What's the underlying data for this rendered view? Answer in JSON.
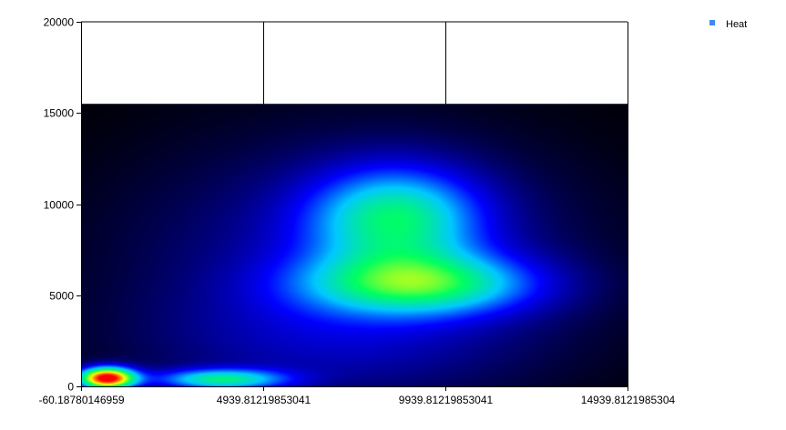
{
  "chart_data": {
    "type": "heatmap",
    "title": "",
    "xlabel": "",
    "ylabel": "",
    "xlim": [
      -60.18780146959,
      14939.8121985304
    ],
    "ylim": [
      0,
      20000
    ],
    "x_ticks": [
      {
        "value": -60.18780146959,
        "label": "-60.18780146959"
      },
      {
        "value": 4939.81219853041,
        "label": "4939.81219853041"
      },
      {
        "value": 9939.81219853041,
        "label": "9939.81219853041"
      },
      {
        "value": 14939.8121985304,
        "label": "14939.8121985304"
      }
    ],
    "y_ticks": [
      {
        "value": 0,
        "label": "0"
      },
      {
        "value": 5000,
        "label": "5000"
      },
      {
        "value": 10000,
        "label": "10000"
      },
      {
        "value": 15000,
        "label": "15000"
      },
      {
        "value": 20000,
        "label": "20000"
      }
    ],
    "heat_extent": {
      "x": [
        -60.18780146959,
        14939.8121985304
      ],
      "y": [
        0,
        15500
      ]
    },
    "background_color": "#000000",
    "color_scale": [
      "#000000",
      "#0000ff",
      "#00c8ff",
      "#00ff60",
      "#ffff00",
      "#ff0000"
    ],
    "hotspots": [
      {
        "x": 640,
        "y": 450,
        "sx": 560,
        "sy": 430,
        "intensity": 1.0
      },
      {
        "x": 3770,
        "y": 380,
        "sx": 1300,
        "sy": 420,
        "intensity": 0.47
      },
      {
        "x": 8600,
        "y": 9300,
        "sx": 1700,
        "sy": 2000,
        "intensity": 0.43
      },
      {
        "x": 9300,
        "y": 5600,
        "sx": 2300,
        "sy": 1200,
        "intensity": 0.45
      },
      {
        "x": 7500,
        "y": 7000,
        "sx": 4400,
        "sy": 4800,
        "intensity": 0.2
      },
      {
        "x": 6500,
        "y": 2200,
        "sx": 4000,
        "sy": 2200,
        "intensity": 0.1
      }
    ],
    "grid": "vertical lines at x ticks",
    "legend": {
      "position": "top-right",
      "entries": [
        {
          "label": "Heat",
          "color": "#3d8bf0"
        }
      ]
    }
  }
}
